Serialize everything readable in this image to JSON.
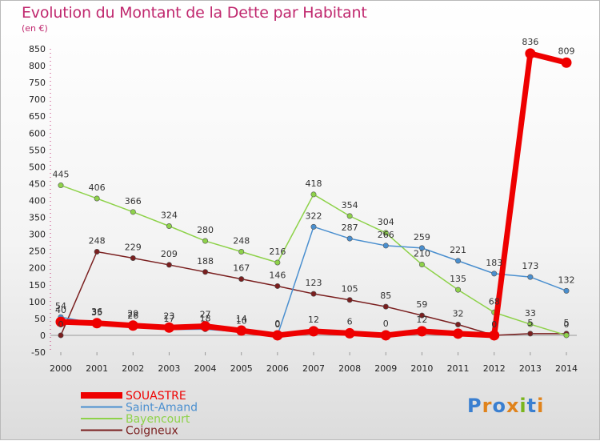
{
  "header": {
    "title": "Evolution du Montant de la Dette par Habitant",
    "subtitle": "(en €)"
  },
  "logo": {
    "text": "Proxiti",
    "letters": [
      "P",
      "r",
      "o",
      "x",
      "i",
      "t",
      "i"
    ],
    "colors": [
      "#3a7fd0",
      "#e0831c",
      "#3a7fd0",
      "#e0831c",
      "#7ab51d",
      "#3a7fd0",
      "#e0831c"
    ]
  },
  "chart_data": {
    "type": "line",
    "x": [
      "2000",
      "2001",
      "2002",
      "2003",
      "2004",
      "2005",
      "2006",
      "2007",
      "2008",
      "2009",
      "2010",
      "2011",
      "2012",
      "2013",
      "2014"
    ],
    "ylim": [
      -50,
      850
    ],
    "yticks": [
      -50,
      0,
      50,
      100,
      150,
      200,
      250,
      300,
      350,
      400,
      450,
      500,
      550,
      600,
      650,
      700,
      750,
      800,
      850
    ],
    "grid": false,
    "legend_position": "bottom-left",
    "series": [
      {
        "name": "Coigneux",
        "color": "#7a1f1f",
        "values": [
          0,
          248,
          229,
          209,
          188,
          167,
          146,
          123,
          105,
          85,
          59,
          32,
          0,
          5,
          5
        ],
        "labels": [
          "0",
          "248",
          "229",
          "209",
          "188",
          "167",
          "146",
          "123",
          "105",
          "85",
          "59",
          "32",
          "0",
          "5",
          "5"
        ]
      },
      {
        "name": "Bayencourt",
        "color": "#8ed24a",
        "values": [
          445,
          406,
          366,
          324,
          280,
          248,
          216,
          418,
          354,
          304,
          210,
          135,
          68,
          33,
          0
        ],
        "labels": [
          "445",
          "406",
          "366",
          "324",
          "280",
          "248",
          "216",
          "418",
          "354",
          "304",
          "210",
          "135",
          "68",
          "33",
          "0"
        ]
      },
      {
        "name": "Saint-Amand",
        "color": "#4a8fcf",
        "values": [
          54,
          35,
          26,
          17,
          18,
          10,
          0,
          322,
          287,
          266,
          259,
          221,
          183,
          173,
          132
        ],
        "labels": [
          "54",
          "35",
          "26",
          "17",
          "18",
          "10",
          "0",
          "322",
          "287",
          "266",
          "259",
          "221",
          "183",
          "173",
          "132"
        ]
      },
      {
        "name": "SOUASTRE",
        "color": "#ee0000",
        "values": [
          40,
          36,
          29,
          23,
          27,
          14,
          0,
          12,
          6,
          0,
          12,
          5,
          0,
          836,
          809
        ],
        "labels": [
          "40",
          "36",
          "29",
          "23",
          "27",
          "14",
          "0",
          "12",
          "6",
          "0",
          "12",
          "",
          "",
          "836",
          "809"
        ]
      }
    ],
    "legend": [
      "SOUASTRE",
      "Saint-Amand",
      "Bayencourt",
      "Coigneux"
    ]
  }
}
